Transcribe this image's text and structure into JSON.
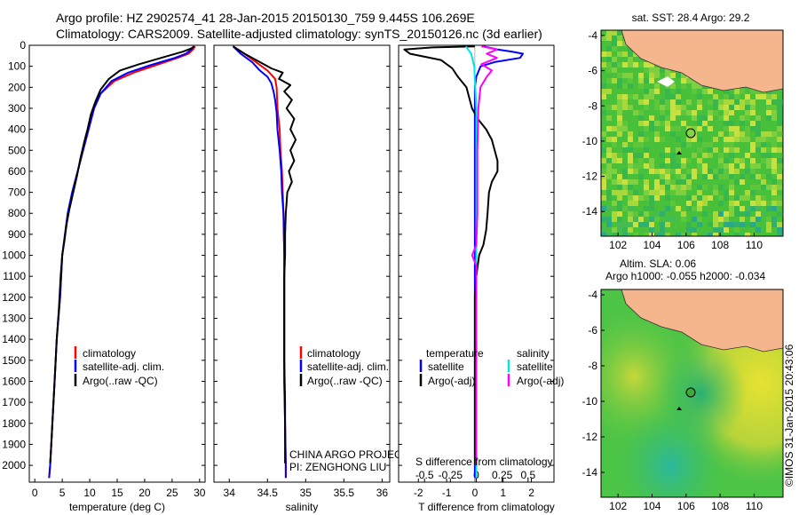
{
  "header": {
    "line1": "Argo profile: HZ 2902574_41 28-Jan-2015 20150130_759 9.445S 106.269E",
    "line2": "Climatology: CARS2009. Satellite-adjusted climatology: synTS_20150126.nc (3d earlier)"
  },
  "colors": {
    "climatology": "#ff0000",
    "satellite": "#0000ff",
    "argo": "#000000",
    "salinity_satellite": "#00e5e5",
    "salinity_argo": "#ff00ff",
    "land": "#f5b58d"
  },
  "chart_data": [
    {
      "id": "temperature",
      "type": "line",
      "xlabel": "temperature (deg C)",
      "ylabel": "",
      "xlim": [
        -1,
        31
      ],
      "ylim": [
        2080,
        0
      ],
      "xticks": [
        "0",
        "5",
        "10",
        "15",
        "20",
        "25",
        "30"
      ],
      "yticks": [
        "0",
        "100",
        "200",
        "300",
        "400",
        "500",
        "600",
        "700",
        "800",
        "900",
        "1000",
        "1100",
        "1200",
        "1300",
        "1400",
        "1500",
        "1600",
        "1700",
        "1800",
        "1900",
        "2000"
      ],
      "legend": [
        "climatology",
        "satellite-adj. clim.",
        "Argo(..raw -QC)"
      ],
      "series": [
        {
          "name": "climatology",
          "points": [
            [
              29.2,
              5
            ],
            [
              28.8,
              20
            ],
            [
              28,
              40
            ],
            [
              26,
              60
            ],
            [
              22,
              95
            ],
            [
              18,
              130
            ],
            [
              14.5,
              170
            ],
            [
              12,
              230
            ],
            [
              10.8,
              300
            ],
            [
              9.8,
              400
            ],
            [
              8.8,
              500
            ],
            [
              7.8,
              600
            ],
            [
              6.8,
              700
            ],
            [
              6,
              800
            ],
            [
              5.5,
              900
            ],
            [
              5,
              1000
            ],
            [
              4.6,
              1200
            ],
            [
              4,
              1400
            ],
            [
              3.6,
              1600
            ],
            [
              3.2,
              1800
            ],
            [
              2.8,
              2000
            ],
            [
              2.6,
              2060
            ]
          ]
        },
        {
          "name": "satellite-adj. clim.",
          "points": [
            [
              29,
              5
            ],
            [
              28.5,
              20
            ],
            [
              27.5,
              40
            ],
            [
              25.5,
              60
            ],
            [
              21,
              95
            ],
            [
              17,
              130
            ],
            [
              14,
              170
            ],
            [
              12,
              230
            ],
            [
              10.8,
              300
            ],
            [
              9.8,
              400
            ],
            [
              8.8,
              500
            ],
            [
              7.8,
              600
            ],
            [
              6.8,
              700
            ],
            [
              6,
              800
            ],
            [
              5.5,
              900
            ],
            [
              5,
              1000
            ],
            [
              4.6,
              1200
            ],
            [
              4,
              1400
            ],
            [
              3.6,
              1600
            ],
            [
              3.2,
              1800
            ],
            [
              2.8,
              2000
            ],
            [
              2.6,
              2060
            ]
          ]
        },
        {
          "name": "Argo(..raw -QC)",
          "points": [
            [
              29,
              5
            ],
            [
              28.5,
              15
            ],
            [
              27,
              30
            ],
            [
              23,
              60
            ],
            [
              19,
              90
            ],
            [
              15.5,
              120
            ],
            [
              13.5,
              160
            ],
            [
              12,
              210
            ],
            [
              11,
              270
            ],
            [
              10.2,
              330
            ],
            [
              9.6,
              400
            ],
            [
              9,
              460
            ],
            [
              8.3,
              540
            ],
            [
              7.7,
              620
            ],
            [
              7,
              700
            ],
            [
              6.3,
              780
            ],
            [
              5.8,
              850
            ],
            [
              5.4,
              930
            ],
            [
              5,
              1000
            ],
            [
              4.7,
              1100
            ],
            [
              4.4,
              1250
            ],
            [
              4,
              1400
            ],
            [
              3.6,
              1600
            ],
            [
              3.3,
              1750
            ],
            [
              3,
              1900
            ],
            [
              2.8,
              1990
            ]
          ]
        }
      ]
    },
    {
      "id": "salinity",
      "type": "line",
      "xlabel": "salinity",
      "ylabel": "",
      "xlim": [
        33.8,
        36.1
      ],
      "ylim": [
        2080,
        0
      ],
      "xticks": [
        "34",
        "34.5",
        "35",
        "35.5",
        "36"
      ],
      "legend": [
        "climatology",
        "satellite-adj. clim.",
        "Argo(..raw -QC)"
      ],
      "annotation": [
        "CHINA ARGO PROJECT",
        "PI: ZENGHONG LIU"
      ],
      "series": [
        {
          "name": "climatology",
          "points": [
            [
              34.05,
              5
            ],
            [
              34.2,
              40
            ],
            [
              34.35,
              80
            ],
            [
              34.5,
              120
            ],
            [
              34.6,
              160
            ],
            [
              34.62,
              200
            ],
            [
              34.63,
              300
            ],
            [
              34.66,
              400
            ],
            [
              34.67,
              500
            ],
            [
              34.69,
              600
            ],
            [
              34.7,
              700
            ],
            [
              34.71,
              800
            ],
            [
              34.72,
              1000
            ],
            [
              34.72,
              1200
            ],
            [
              34.72,
              1400
            ],
            [
              34.72,
              1600
            ],
            [
              34.73,
              1800
            ],
            [
              34.74,
              2000
            ],
            [
              34.74,
              2060
            ]
          ]
        },
        {
          "name": "satellite-adj. clim.",
          "points": [
            [
              34.05,
              5
            ],
            [
              34.15,
              40
            ],
            [
              34.3,
              80
            ],
            [
              34.4,
              120
            ],
            [
              34.5,
              150
            ],
            [
              34.55,
              180
            ],
            [
              34.58,
              220
            ],
            [
              34.6,
              260
            ],
            [
              34.62,
              320
            ],
            [
              34.63,
              400
            ],
            [
              34.66,
              500
            ],
            [
              34.68,
              600
            ],
            [
              34.69,
              700
            ],
            [
              34.71,
              800
            ],
            [
              34.72,
              1000
            ],
            [
              34.72,
              1200
            ],
            [
              34.72,
              1400
            ],
            [
              34.72,
              1600
            ],
            [
              34.73,
              1800
            ],
            [
              34.74,
              2000
            ],
            [
              34.74,
              2060
            ]
          ]
        },
        {
          "name": "Argo(..raw -QC)",
          "points": [
            [
              34.05,
              5
            ],
            [
              34.2,
              40
            ],
            [
              34.4,
              80
            ],
            [
              34.55,
              110
            ],
            [
              34.7,
              130
            ],
            [
              34.65,
              160
            ],
            [
              34.8,
              190
            ],
            [
              34.72,
              220
            ],
            [
              34.82,
              260
            ],
            [
              34.75,
              300
            ],
            [
              34.85,
              350
            ],
            [
              34.8,
              400
            ],
            [
              34.87,
              450
            ],
            [
              34.8,
              500
            ],
            [
              34.85,
              550
            ],
            [
              34.78,
              600
            ],
            [
              34.82,
              650
            ],
            [
              34.76,
              700
            ],
            [
              34.75,
              750
            ],
            [
              34.74,
              800
            ],
            [
              34.73,
              900
            ],
            [
              34.73,
              1000
            ],
            [
              34.72,
              1100
            ],
            [
              34.72,
              1300
            ],
            [
              34.72,
              1500
            ],
            [
              34.73,
              1700
            ],
            [
              34.73,
              1900
            ],
            [
              34.73,
              1990
            ]
          ]
        }
      ]
    },
    {
      "id": "difference",
      "type": "line",
      "xlabel": "T difference from climatology",
      "xlabel_top": "S difference from climatology",
      "xlim": [
        -2.7,
        2.8
      ],
      "xlim_salinity": [
        -0.75,
        0.75
      ],
      "ylim": [
        2080,
        0
      ],
      "xticks": [
        "-2",
        "-1",
        "0",
        "1",
        "2"
      ],
      "xticks_salinity": [
        "-0.5",
        "-0.25",
        "0",
        "0.25",
        "0.5"
      ],
      "legend": {
        "temperature": "temperature",
        "salinity": "salinity",
        "satellite": "satellite",
        "argo": "Argo(-adj)"
      },
      "series": [
        {
          "name": "satellite",
          "group": "temperature",
          "points": [
            [
              0.3,
              5
            ],
            [
              0.8,
              20
            ],
            [
              1.3,
              30
            ],
            [
              1.7,
              40
            ],
            [
              1.6,
              60
            ],
            [
              0.7,
              80
            ],
            [
              0.2,
              100
            ],
            [
              0.05,
              150
            ],
            [
              0,
              200
            ],
            [
              0,
              300
            ],
            [
              0,
              500
            ],
            [
              0,
              800
            ],
            [
              0,
              1000
            ],
            [
              0,
              1500
            ],
            [
              0,
              2000
            ],
            [
              0,
              2060
            ]
          ]
        },
        {
          "name": "Argo(-adj)",
          "group": "temperature",
          "points": [
            [
              0,
              5
            ],
            [
              -1.5,
              10
            ],
            [
              -2.5,
              20
            ],
            [
              -2.3,
              40
            ],
            [
              -1.2,
              70
            ],
            [
              -0.8,
              110
            ],
            [
              -0.6,
              150
            ],
            [
              -0.3,
              200
            ],
            [
              -0.1,
              300
            ],
            [
              0.1,
              350
            ],
            [
              0.4,
              400
            ],
            [
              0.6,
              450
            ],
            [
              0.7,
              500
            ],
            [
              0.8,
              550
            ],
            [
              0.8,
              600
            ],
            [
              0.6,
              650
            ],
            [
              0.5,
              700
            ],
            [
              0.45,
              800
            ],
            [
              0.4,
              880
            ],
            [
              0.3,
              950
            ],
            [
              0.15,
              1000
            ],
            [
              0.05,
              1100
            ],
            [
              0,
              1200
            ],
            [
              0,
              1600
            ],
            [
              0,
              2000
            ]
          ]
        },
        {
          "name": "satellite",
          "group": "salinity",
          "points": [
            [
              -0.1,
              5
            ],
            [
              -0.05,
              40
            ],
            [
              -0.02,
              100
            ],
            [
              -0.01,
              200
            ],
            [
              0,
              300
            ],
            [
              0,
              600
            ],
            [
              0,
              1000
            ],
            [
              0,
              1500
            ],
            [
              0,
              2060
            ]
          ]
        },
        {
          "name": "Argo(-adj)",
          "group": "salinity",
          "points": [
            [
              0.05,
              5
            ],
            [
              0.2,
              20
            ],
            [
              0.1,
              40
            ],
            [
              0.2,
              60
            ],
            [
              0.05,
              90
            ],
            [
              0.15,
              120
            ],
            [
              0.1,
              150
            ],
            [
              0.04,
              200
            ],
            [
              0.02,
              300
            ],
            [
              0.01,
              500
            ],
            [
              0.01,
              800
            ],
            [
              0,
              950
            ],
            [
              -0.04,
              1000
            ],
            [
              0,
              1050
            ],
            [
              0,
              1200
            ],
            [
              0,
              1500
            ],
            [
              0,
              2000
            ]
          ]
        }
      ]
    }
  ],
  "maps": [
    {
      "id": "sst-map",
      "title": "sat. SST: 28.4 Argo: 29.2",
      "xticks": [
        "102",
        "104",
        "106",
        "108",
        "110"
      ],
      "yticks": [
        "-4",
        "-6",
        "-8",
        "-10",
        "-12",
        "-14"
      ],
      "xlim": [
        101,
        111.7
      ],
      "ylim": [
        -15.4,
        -3.7
      ],
      "float_position": [
        106.269,
        -9.445
      ],
      "track_point": [
        105.6,
        -10.1
      ]
    },
    {
      "id": "sla-map",
      "title_line1": "Altim. SLA: 0.06",
      "title_line2": "Argo h1000: -0.055 h2000: -0.034",
      "xticks": [
        "102",
        "104",
        "106",
        "108",
        "110"
      ],
      "yticks": [
        "-4",
        "-6",
        "-8",
        "-10",
        "-12",
        "-14"
      ],
      "xlim": [
        101,
        111.7
      ],
      "ylim": [
        -15.4,
        -3.7
      ],
      "float_position": [
        106.269,
        -9.445
      ],
      "track_point": [
        105.6,
        -10.1
      ]
    }
  ],
  "credit": "©IMOS 31-Jan-2015 20:43:06"
}
